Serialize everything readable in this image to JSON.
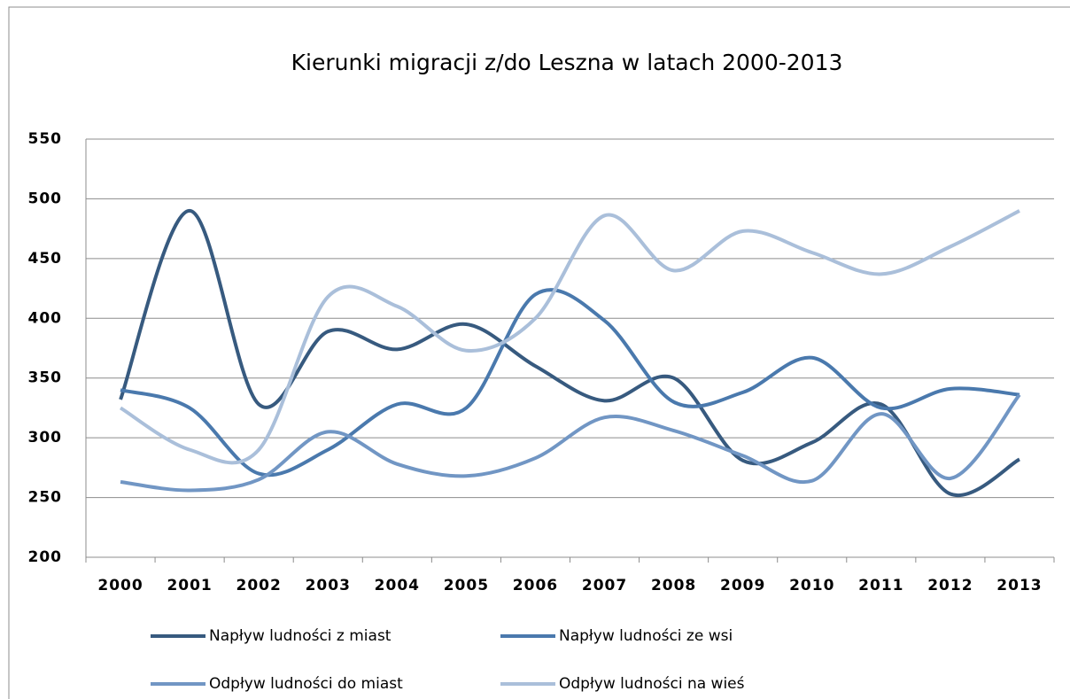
{
  "chart_data": {
    "type": "line",
    "title": "Kierunki migracji z/do Leszna w latach 2000-2013",
    "categories": [
      "2000",
      "2001",
      "2002",
      "2003",
      "2004",
      "2005",
      "2006",
      "2007",
      "2008",
      "2009",
      "2010",
      "2011",
      "2012",
      "2013"
    ],
    "series": [
      {
        "name": "Napływ ludności z miast",
        "color": "#375a7f",
        "values": [
          332,
          490,
          328,
          389,
          374,
          395,
          360,
          331,
          350,
          281,
          296,
          328,
          253,
          282
        ]
      },
      {
        "name": "Napływ ludności ze wsi",
        "color": "#4a79ad",
        "values": [
          340,
          325,
          270,
          290,
          328,
          325,
          420,
          398,
          330,
          338,
          367,
          325,
          341,
          336
        ]
      },
      {
        "name": "Odpływ ludności do miast",
        "color": "#7196c4",
        "values": [
          263,
          256,
          265,
          305,
          278,
          268,
          283,
          317,
          306,
          285,
          264,
          320,
          266,
          336
        ]
      },
      {
        "name": "Odpływ ludności na wieś",
        "color": "#aabfda",
        "values": [
          325,
          290,
          290,
          418,
          410,
          373,
          400,
          486,
          440,
          473,
          455,
          437,
          460,
          490
        ]
      }
    ],
    "ylim": [
      200,
      550
    ],
    "yticks": [
      200,
      250,
      300,
      350,
      400,
      450,
      500,
      550
    ],
    "grid": true,
    "smooth": true
  }
}
